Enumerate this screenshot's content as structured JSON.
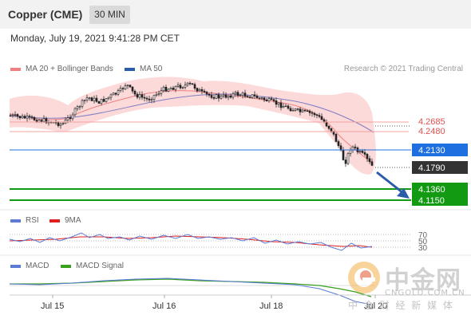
{
  "header": {
    "instrument": "Copper (CME)",
    "timeframe": "30 MIN",
    "datetime": "Monday, July 19, 2021 9:41:28 PM CET"
  },
  "main_chart": {
    "legend": [
      {
        "label": "MA 20 + Bollinger Bands",
        "color": "#f08080"
      },
      {
        "label": "MA 50",
        "color": "#2a5ca8"
      }
    ],
    "credit": "Research © 2021 Trading Central",
    "levels": [
      {
        "label": "4.2685",
        "kind": "resistance",
        "color": "#e05050"
      },
      {
        "label": "4.2480",
        "kind": "resistance",
        "color": "#e05050"
      },
      {
        "label": "4.2130",
        "kind": "pivot",
        "color": "#1e6fe0"
      },
      {
        "label": "4.1790",
        "kind": "last",
        "color": "#333333"
      },
      {
        "label": "4.1360",
        "kind": "support",
        "color": "#139a13"
      },
      {
        "label": "4.1150",
        "kind": "support",
        "color": "#139a13"
      }
    ],
    "arrow_direction": "down"
  },
  "rsi": {
    "legend": [
      {
        "label": "RSI",
        "color": "#5b7bd5"
      },
      {
        "label": "9MA",
        "color": "#e02020"
      }
    ],
    "levels": [
      "70",
      "50",
      "30"
    ]
  },
  "macd": {
    "legend": [
      {
        "label": "MACD",
        "color": "#5b7bd5"
      },
      {
        "label": "MACD Signal",
        "color": "#3aa020"
      }
    ]
  },
  "x_axis": {
    "labels": [
      "Jul 15",
      "Jul 16",
      "Jul 18",
      "Jul 20"
    ]
  },
  "watermark": {
    "logo_text": "中金网",
    "url": "CNGOLD.COM.CN",
    "tagline": "中 金 财 经 新 媒 体"
  }
}
